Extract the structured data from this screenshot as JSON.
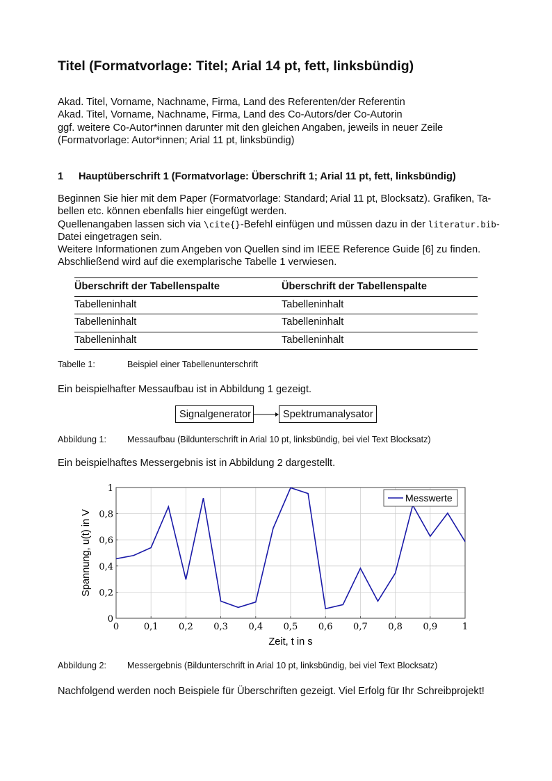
{
  "title": "Titel (Formatvorlage: Titel; Arial 14 pt, fett, linksbündig)",
  "authors": [
    "Akad. Titel, Vorname, Nachname, Firma, Land des Referenten/der Referentin",
    "Akad. Titel, Vorname, Nachname, Firma, Land des Co-Autors/der Co-Autorin",
    "ggf. weitere Co-Autor*innen darunter mit den gleichen Angaben, jeweils in neuer Zeile",
    "(Formatvorlage: Autor*innen; Arial 11 pt, linksbündig)"
  ],
  "section": {
    "number": "1",
    "title": "Hauptüberschrift 1 (Formatvorlage: Überschrift 1; Arial 11 pt, fett, linksbündig)"
  },
  "paragraph": {
    "line1": "Beginnen Sie hier mit dem Paper (Formatvorlage: Standard; Arial 11 pt, Blocksatz). Grafiken, Ta-",
    "line2": "bellen etc. können ebenfalls hier eingefügt werden.",
    "line3_a": "Quellenangaben lassen sich via ",
    "line3_code1": "\\cite{}",
    "line3_b": "-Befehl einfügen und müssen dazu in der ",
    "line3_code2": "literatur.bib",
    "line3_c": "-",
    "line4": "Datei eingetragen sein.",
    "line5": "Weitere Informationen zum Angeben von Quellen sind im IEEE Reference Guide [6] zu finden.",
    "line6": "Abschließend wird auf die exemplarische Tabelle 1 verwiesen."
  },
  "table": {
    "headers": [
      "Überschrift der Tabellenspalte",
      "Überschrift der Tabellenspalte"
    ],
    "rows": [
      [
        "Tabelleninhalt",
        "Tabelleninhalt"
      ],
      [
        "Tabelleninhalt",
        "Tabelleninhalt"
      ],
      [
        "Tabelleninhalt",
        "Tabelleninhalt"
      ]
    ],
    "caption_label": "Tabelle 1:",
    "caption": "Beispiel einer Tabellenunterschrift"
  },
  "text_fig1": "Ein beispielhafter Messaufbau ist in Abbildung 1 gezeigt.",
  "diagram": {
    "box1": "Signalgenerator",
    "box2": "Spektrumanalysator"
  },
  "fig1_caption": {
    "label": "Abbildung 1:",
    "text": "Messaufbau (Bildunterschrift in Arial 10 pt, linksbündig, bei viel Text Blocksatz)"
  },
  "text_fig2": "Ein beispielhaftes Messergebnis ist in Abbildung 2 dargestellt.",
  "chart_data": {
    "type": "line",
    "xlabel": "Zeit, t in s",
    "ylabel": "Spannung, u(t) in V",
    "xlim": [
      0,
      1
    ],
    "ylim": [
      0,
      1
    ],
    "xticks": [
      "0",
      "0,1",
      "0,2",
      "0,3",
      "0,4",
      "0,5",
      "0,6",
      "0,7",
      "0,8",
      "0,9",
      "1"
    ],
    "yticks": [
      "0",
      "0,2",
      "0,4",
      "0,6",
      "0,8",
      "1"
    ],
    "grid": true,
    "legend": "top-right",
    "color": "#1a1aa8",
    "series": [
      {
        "name": "Messwerte",
        "x": [
          0,
          0.05,
          0.1,
          0.15,
          0.2,
          0.25,
          0.3,
          0.35,
          0.4,
          0.45,
          0.5,
          0.55,
          0.6,
          0.65,
          0.7,
          0.75,
          0.8,
          0.85,
          0.9,
          0.95,
          1.0
        ],
        "y": [
          0.455,
          0.48,
          0.54,
          0.853,
          0.296,
          0.919,
          0.131,
          0.083,
          0.124,
          0.688,
          0.998,
          0.954,
          0.073,
          0.104,
          0.382,
          0.131,
          0.345,
          0.865,
          0.627,
          0.804,
          0.586
        ]
      }
    ]
  },
  "fig2_caption": {
    "label": "Abbildung 2:",
    "text": "Messergebnis (Bildunterschrift in Arial 10 pt, linksbündig, bei viel Text Blocksatz)"
  },
  "closing": "Nachfolgend werden noch Beispiele für Überschriften gezeigt. Viel Erfolg für Ihr Schreibprojekt!"
}
